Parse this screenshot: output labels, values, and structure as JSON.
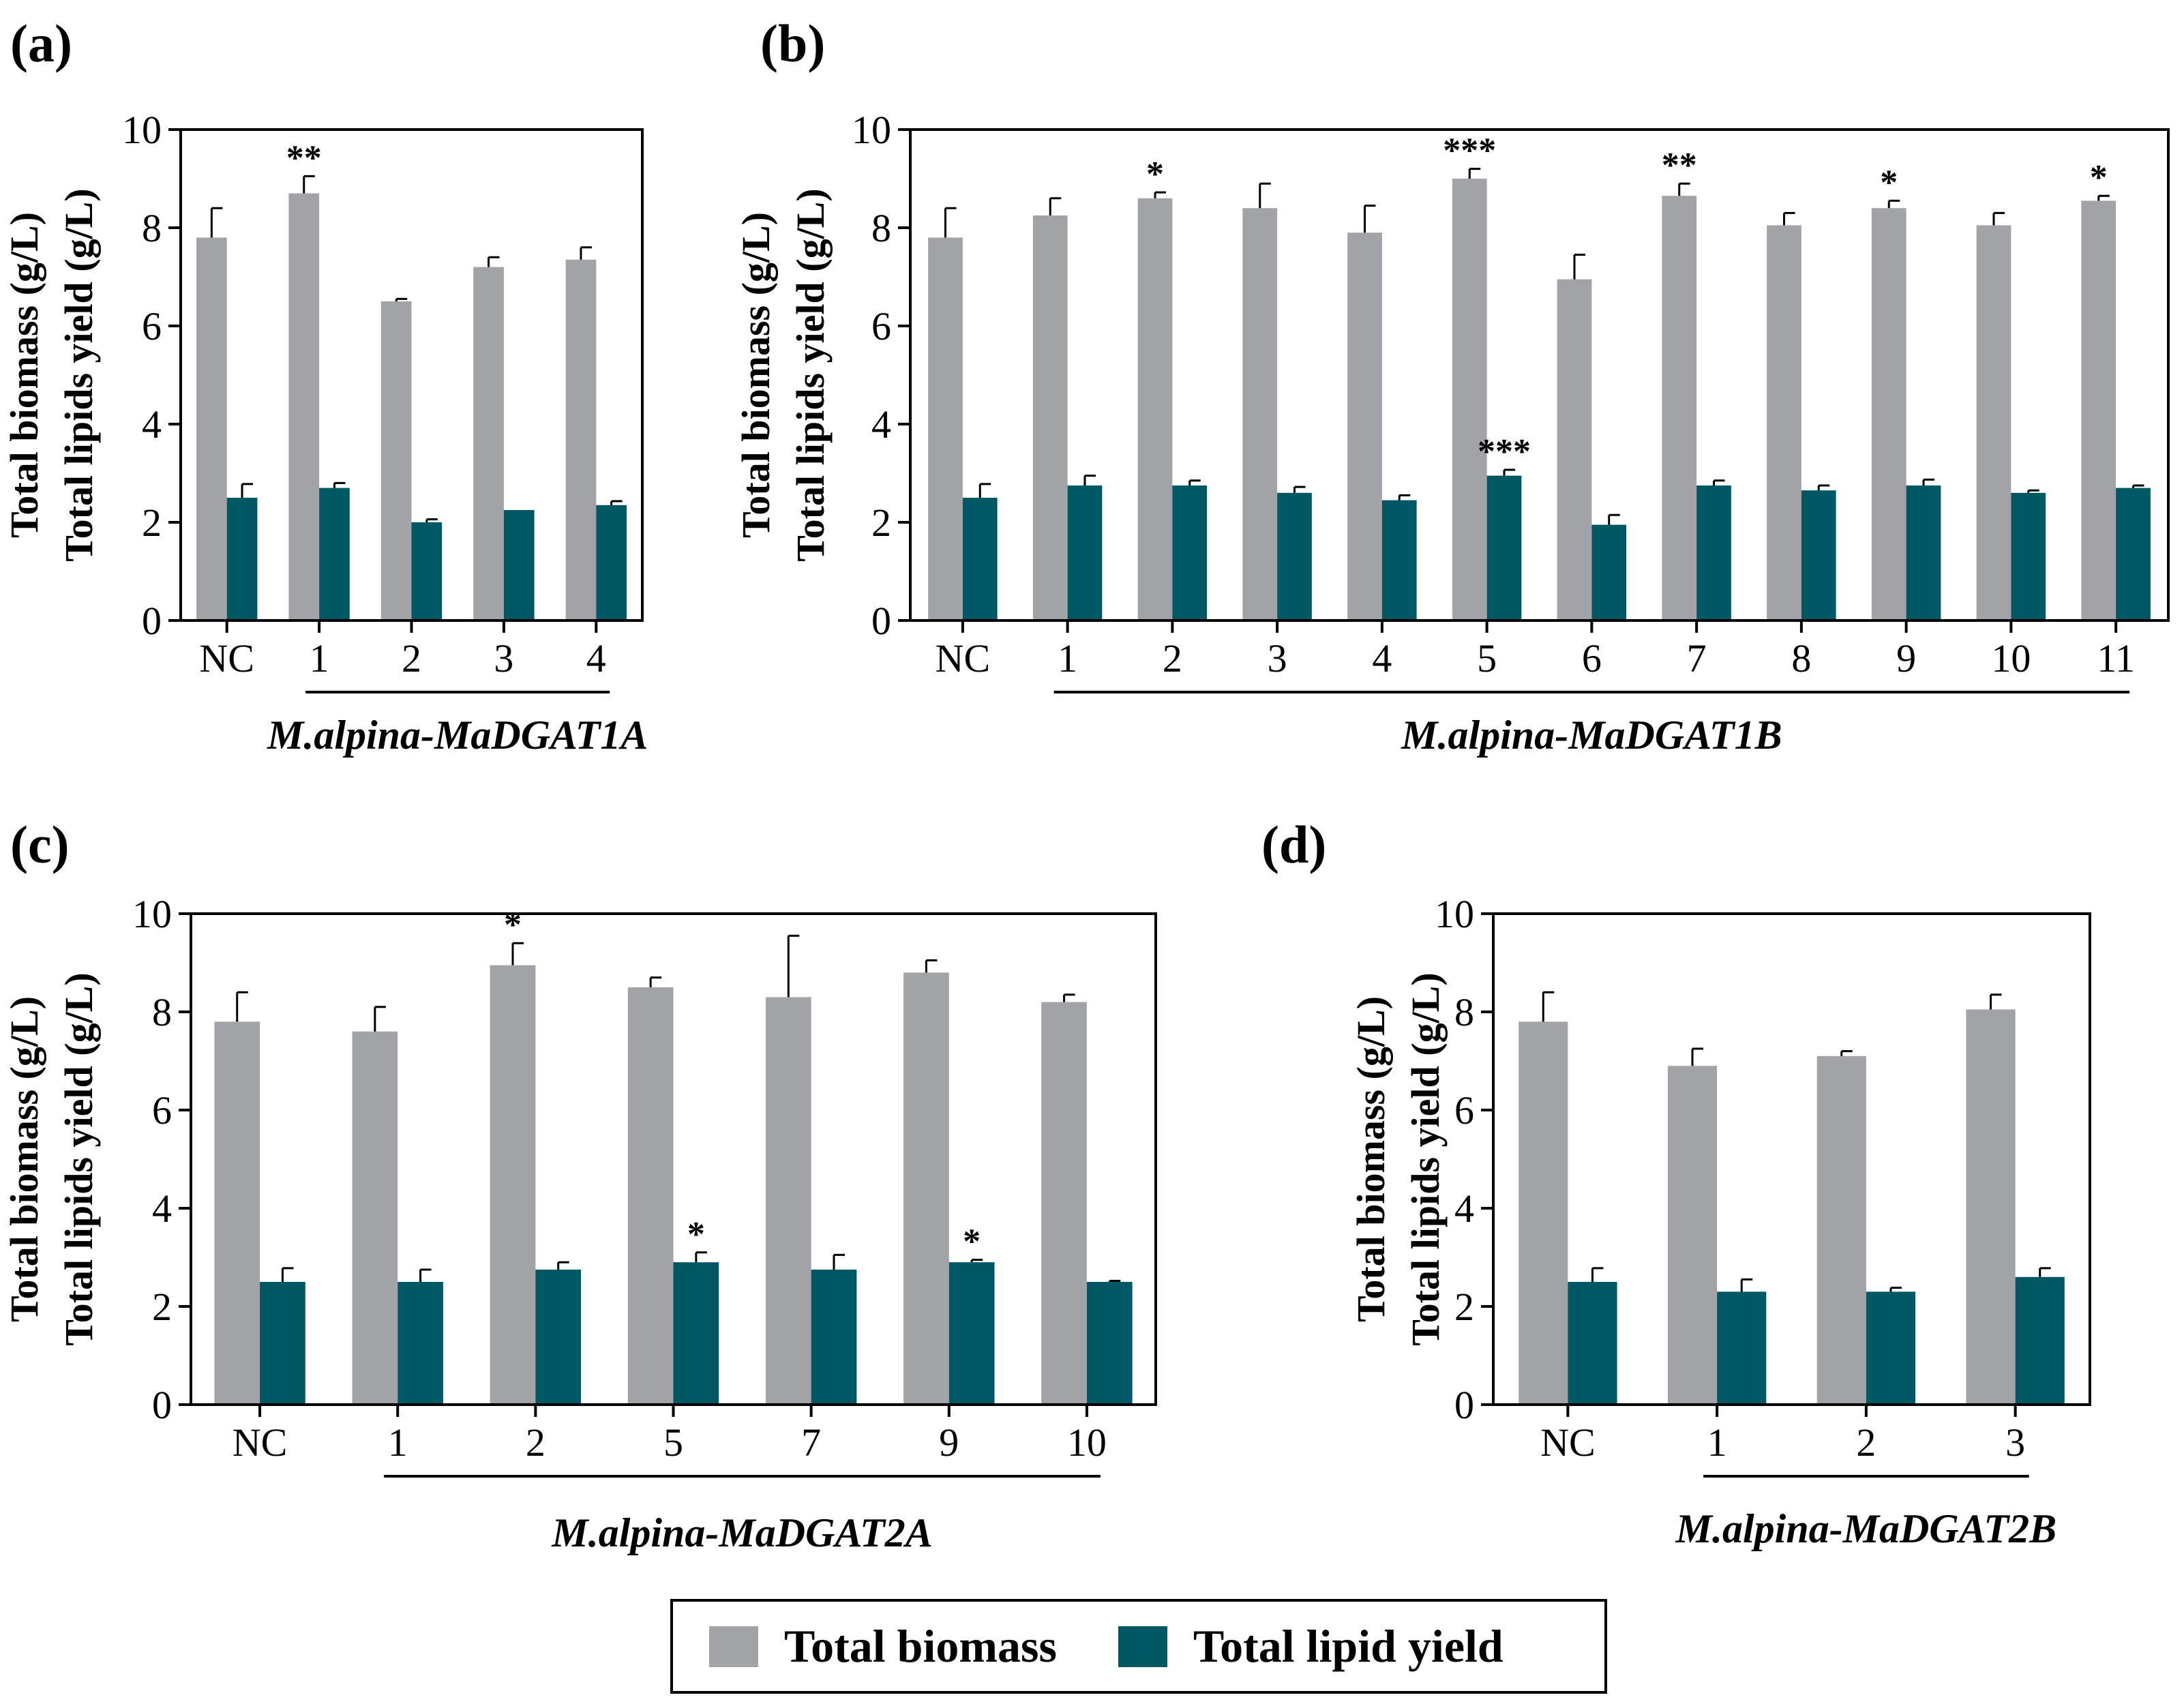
{
  "colors": {
    "biomass": "#a2a3a6",
    "lipid": "#005865",
    "axis": "#000000"
  },
  "legend": {
    "biomass_label": "Total biomass",
    "lipid_label": "Total lipid yield"
  },
  "chart_data": [
    {
      "type": "bar",
      "panel": "(a)",
      "ylabel_line1": "Total biomass (g/L)",
      "ylabel_line2": "Total lipids yield (g/L)",
      "group_label": "M.alpina-MaDGAT1A",
      "ylim": [
        0,
        10
      ],
      "yticks": [
        0,
        2,
        4,
        6,
        8,
        10
      ],
      "categories": [
        "NC",
        "1",
        "2",
        "3",
        "4"
      ],
      "series": [
        {
          "name": "Total biomass",
          "values": [
            7.8,
            8.7,
            6.5,
            7.2,
            7.35
          ],
          "errors": [
            0.6,
            0.35,
            0.05,
            0.2,
            0.25
          ],
          "sig": [
            "",
            "**",
            "",
            "",
            ""
          ]
        },
        {
          "name": "Total lipid yield",
          "values": [
            2.5,
            2.7,
            2.0,
            2.25,
            2.35
          ],
          "errors": [
            0.28,
            0.1,
            0.06,
            0.0,
            0.08
          ],
          "sig": [
            "",
            "",
            "",
            "",
            ""
          ]
        }
      ]
    },
    {
      "type": "bar",
      "panel": "(b)",
      "ylabel_line1": "Total biomass (g/L)",
      "ylabel_line2": "Total lipids yield (g/L)",
      "group_label": "M.alpina-MaDGAT1B",
      "ylim": [
        0,
        10
      ],
      "yticks": [
        0,
        2,
        4,
        6,
        8,
        10
      ],
      "categories": [
        "NC",
        "1",
        "2",
        "3",
        "4",
        "5",
        "6",
        "7",
        "8",
        "9",
        "10",
        "11"
      ],
      "series": [
        {
          "name": "Total biomass",
          "values": [
            7.8,
            8.25,
            8.6,
            8.4,
            7.9,
            9.0,
            6.95,
            8.65,
            8.05,
            8.4,
            8.05,
            8.55
          ],
          "errors": [
            0.6,
            0.35,
            0.12,
            0.5,
            0.55,
            0.2,
            0.5,
            0.25,
            0.25,
            0.15,
            0.25,
            0.1
          ],
          "sig": [
            "",
            "",
            "*",
            "",
            "",
            "***",
            "",
            "**",
            "",
            "*",
            "",
            "*"
          ]
        },
        {
          "name": "Total lipid yield",
          "values": [
            2.5,
            2.75,
            2.75,
            2.6,
            2.45,
            2.95,
            1.95,
            2.75,
            2.65,
            2.75,
            2.6,
            2.7
          ],
          "errors": [
            0.28,
            0.2,
            0.1,
            0.12,
            0.1,
            0.12,
            0.2,
            0.1,
            0.1,
            0.12,
            0.05,
            0.05
          ],
          "sig": [
            "",
            "",
            "",
            "",
            "",
            "***",
            "",
            "",
            "",
            "",
            "",
            ""
          ]
        }
      ]
    },
    {
      "type": "bar",
      "panel": "(c)",
      "ylabel_line1": "Total biomass (g/L)",
      "ylabel_line2": "Total lipids yield (g/L)",
      "group_label": "M.alpina-MaDGAT2A",
      "ylim": [
        0,
        10
      ],
      "yticks": [
        0,
        2,
        4,
        6,
        8,
        10
      ],
      "categories": [
        "NC",
        "1",
        "2",
        "5",
        "7",
        "9",
        "10"
      ],
      "series": [
        {
          "name": "Total biomass",
          "values": [
            7.8,
            7.6,
            8.95,
            8.5,
            8.3,
            8.8,
            8.2
          ],
          "errors": [
            0.6,
            0.5,
            0.45,
            0.2,
            1.25,
            0.25,
            0.15
          ],
          "sig": [
            "",
            "",
            "*",
            "",
            "",
            "",
            ""
          ]
        },
        {
          "name": "Total lipid yield",
          "values": [
            2.5,
            2.5,
            2.75,
            2.9,
            2.75,
            2.9,
            2.5
          ],
          "errors": [
            0.28,
            0.25,
            0.15,
            0.2,
            0.3,
            0.05,
            0.02
          ],
          "sig": [
            "",
            "",
            "",
            "*",
            "",
            "*",
            ""
          ]
        }
      ]
    },
    {
      "type": "bar",
      "panel": "(d)",
      "ylabel_line1": "Total biomass (g/L)",
      "ylabel_line2": "Total lipids yield (g/L)",
      "group_label": "M.alpina-MaDGAT2B",
      "ylim": [
        0,
        10
      ],
      "yticks": [
        0,
        2,
        4,
        6,
        8,
        10
      ],
      "categories": [
        "NC",
        "1",
        "2",
        "3"
      ],
      "series": [
        {
          "name": "Total biomass",
          "values": [
            7.8,
            6.9,
            7.1,
            8.05
          ],
          "errors": [
            0.6,
            0.35,
            0.1,
            0.3
          ],
          "sig": [
            "",
            "",
            "",
            ""
          ]
        },
        {
          "name": "Total lipid yield",
          "values": [
            2.5,
            2.3,
            2.3,
            2.6
          ],
          "errors": [
            0.28,
            0.25,
            0.08,
            0.18
          ],
          "sig": [
            "",
            "",
            "",
            ""
          ]
        }
      ]
    }
  ]
}
